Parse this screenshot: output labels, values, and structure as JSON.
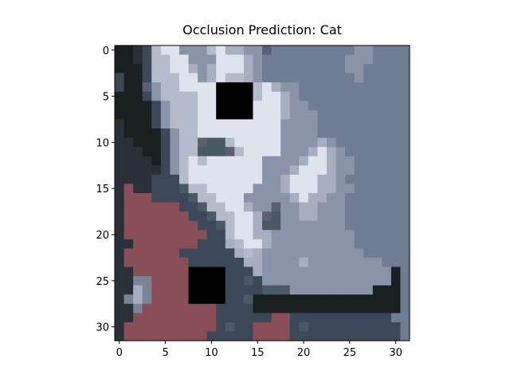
{
  "chart_data": {
    "type": "heatmap",
    "title": "Occlusion Prediction: Cat",
    "xlabel": "",
    "ylabel": "",
    "xlim": [
      -0.5,
      31.5
    ],
    "ylim": [
      31.5,
      -0.5
    ],
    "grid": false,
    "x_ticks": [
      0,
      5,
      10,
      15,
      20,
      25,
      30
    ],
    "y_ticks": [
      0,
      5,
      10,
      15,
      20,
      25,
      30
    ],
    "image_size": [
      32,
      32
    ],
    "palette": {
      "A": "#2a3038",
      "B": "#b4bccc",
      "C": "#dfe3ee",
      "D": "#8a94a8",
      "E": "#6e7c94",
      "F": "#1a2020",
      "G": "#8a4e58",
      "H": "#4a5a64",
      "I": "#5a6070",
      "J": "#000000",
      "K": "#a6aec0",
      "L": "#3a4858",
      "M": "#7a8498"
    },
    "image_rows": [
      "FFALBCCDDDBCKKDDIEEEEEEEEEDDEEEE",
      "FFALBBCCDDDCCCKDEEEEEEEEEDDDEEEE",
      "FFFLBBCCKDKCCCKDEEEEEEEEEDDEEEEE",
      "LFFLBBBCCDKCBBKDEEEEEEEEEEDEEEEE",
      "LFFIDBBCCCCJJJJBCKDDEEEEEEEEEEEE",
      "FFFLDBBBBCCJJJJBCCKDEEEEEEEEEEEE",
      "FFFFLDBBBCCJJJJCCCKDDEEEEEEEEEEE",
      "FFFFLDBBBCCJJJJCCCKDDDEEEEEEEEEE",
      "AFFFLDBBBCCCCCCCCCDDDDEEEEEEEEEE",
      "AFFFFLDBBCCCCCCCCCDDDDEEEEEEEEEE",
      "AAFFFLDBBIHHBCCCCCDDDDKDEEEEEEEE",
      "AAAFFLDBBHHHIBCCCCDDDKCKDEEEEEEE",
      "AAAAFLDBCBCCCCCCDDDDKCCKDDEEEEEE",
      "AAAAALDBCCCCCCCCDDDKCCCKDDEEEEEE",
      "AAAALLLBCCCCCCCCDDKCCCKKDEEEEEEE",
      "AGAALLLHBBCCCCCDDDKCCCKKDDEEEEEE",
      "AGGGLLLLHBBCCCDDDDDKCKKDDEEEEEEE",
      "AGGGGGGLLHBBCCKDDIDDKKDDDEEEEEEE",
      "AGGGGGGGLLHBBCCKIHDDKKDDDEEEEEEE",
      "AGGGGGGGGLLHBCCKHHDDDDDDDEEEEEEE",
      "AGGGGGGGGGLLBCCKKDDDDDDDDDEEEEEE",
      "AAGGGGGGGLLLKBCCKDDDDDDDDDEEEEEE",
      "AGGGGGGLLLLLLKBKDDDDDDDDDDDEEEEE",
      "AGGGGGGGLLLLLLKKDDDDKDDDDDDDDEEE",
      "AAGGGGGGJJJJLLLKDDDDDDDDDDDDDDFE",
      "AAMMGGGGJJJJLLHLDDDDDDDDDDDDDDFE",
      "AAKMGGGGJJJJLLLLHHHDDDDDDDDDFFFE",
      "AMKMGGGGJJJJLLHFFFFFFFFFFFFFFFFE",
      "AAMGGGGGGGGLLLLFFFFFFFFFFFFFFFFE",
      "AAGGGGGGGGGLLLLLLGGLLLLLLLLLLLEE",
      "AGGGGGGGGGGLHLLGGGGLHLLLLLLLLLLE",
      "AGGGGGGGGGLLLLLGGGGLLLLLLLLLLLLE"
    ]
  }
}
